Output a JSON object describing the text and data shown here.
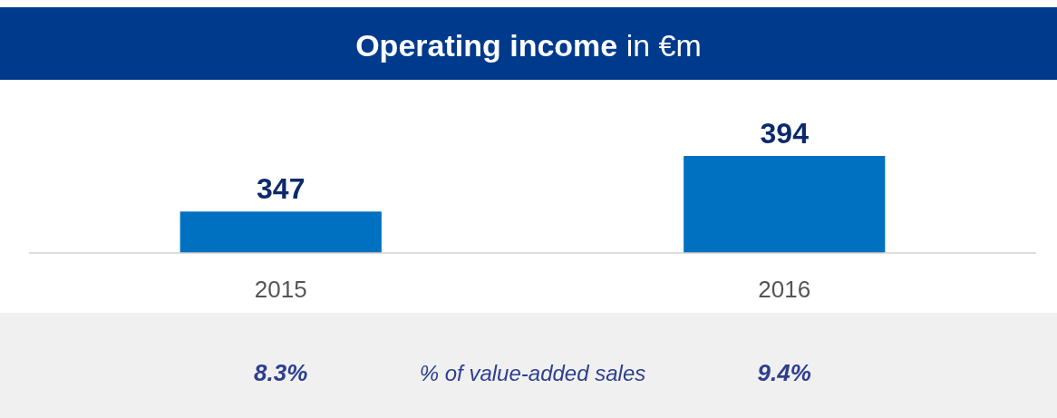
{
  "chart_data": {
    "type": "bar",
    "title": "Operating income",
    "subtitle": "in €m",
    "categories": [
      "2015",
      "2016"
    ],
    "values": [
      347,
      394
    ],
    "color": "#0070c0",
    "ylim": [
      312,
      394
    ],
    "data_labels": true,
    "tick_labels": "x",
    "annotations": [
      "8.3%",
      "% of value-added sales",
      "9.4%"
    ]
  }
}
